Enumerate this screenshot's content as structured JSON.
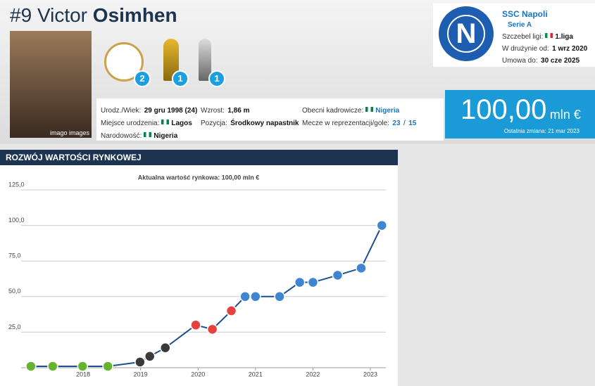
{
  "header": {
    "number": "#9",
    "first_name": "Victor",
    "last_name": "Osimhen",
    "photo_credit": "imago images",
    "trophies": [
      "2",
      "1",
      "1"
    ],
    "info": [
      {
        "label": "Urodz./Wiek:",
        "value": "29 gru 1998 (24)"
      },
      {
        "label": "Miejsce urodzenia:",
        "value": "Lagos"
      },
      {
        "label": "Narodowość:",
        "value": "Nigeria"
      },
      {
        "label": "Wzrost:",
        "value": "1,86 m"
      },
      {
        "label": "Pozycja:",
        "value": "Środkowy napastnik"
      },
      {
        "label": "Obecni kadrowicze:",
        "value": "Nigeria"
      },
      {
        "label": "Mecze w reprezentacji/gole:",
        "caps": "23",
        "separator": "/",
        "goals": "15"
      }
    ]
  },
  "club": {
    "logo_letter": "N",
    "name": "SSC Napoli",
    "league": "Serie A",
    "level_label": "Szczebel ligi:",
    "level": "1.liga",
    "joined_label": "W drużynie od:",
    "joined": "1 wrz 2020",
    "contract_label": "Umowa do:",
    "contract": "30 cze 2025"
  },
  "market_value": {
    "amount": "100,00",
    "unit": "mln €",
    "last_change": "Ostatnia zmiana: 21 mar 2023"
  },
  "section_title": "ROZWÓJ WARTOŚCI RYNKOWEJ",
  "chart_data": {
    "type": "line",
    "title": "Aktualna wartość rynkowa: 100,00 mln €",
    "x": [
      2017.09,
      2017.47,
      2017.99,
      2018.43,
      2018.99,
      2019.16,
      2019.43,
      2019.96,
      2020.25,
      2020.58,
      2020.82,
      2021.0,
      2021.42,
      2021.77,
      2022.0,
      2022.43,
      2022.84,
      2023.2
    ],
    "series": [
      {
        "color": "#1d4f91",
        "values": [
          1,
          1,
          1,
          1,
          4,
          8,
          14,
          30,
          27,
          40,
          50,
          50,
          50,
          60,
          60,
          65,
          70,
          100
        ],
        "marker_colors": [
          "#65b32e",
          "#65b32e",
          "#65b32e",
          "#65b32e",
          "#3a3a3a",
          "#3a3a3a",
          "#3a3a3a",
          "#e4413f",
          "#e4413f",
          "#e4413f",
          "#3e86d1",
          "#3e86d1",
          "#3e86d1",
          "#3e86d1",
          "#3e86d1",
          "#3e86d1",
          "#3e86d1",
          "#3e86d1"
        ]
      }
    ],
    "xlim": [
      2016.92,
      2023.27
    ],
    "xticks": [
      2018,
      2019,
      2020,
      2021,
      2022,
      2023
    ],
    "ylim": [
      0,
      125
    ],
    "yticks": [
      {
        "value": 25,
        "label": "25,0"
      },
      {
        "value": 50,
        "label": "50,0"
      },
      {
        "value": 75,
        "label": "75,0"
      },
      {
        "value": 100,
        "label": "100,0"
      },
      {
        "value": 125,
        "label": "125,0"
      }
    ],
    "grid": true
  }
}
